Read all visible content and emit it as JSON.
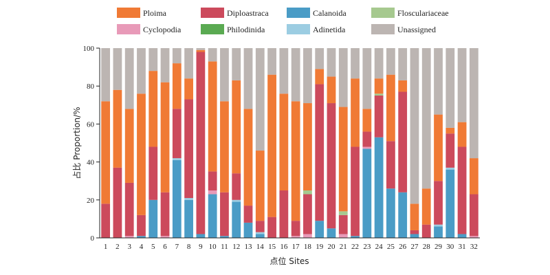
{
  "chart_data": {
    "type": "bar",
    "stacked": true,
    "categories": [
      "1",
      "2",
      "3",
      "4",
      "5",
      "6",
      "7",
      "8",
      "9",
      "10",
      "11",
      "12",
      "13",
      "14",
      "15",
      "16",
      "17",
      "18",
      "19",
      "20",
      "21",
      "22",
      "23",
      "24",
      "25",
      "26",
      "27",
      "28",
      "29",
      "30",
      "31",
      "32"
    ],
    "xlabel": "点位 Sites",
    "ylabel": "占比 Proportion/%",
    "ylim": [
      0,
      100
    ],
    "yticks": [
      0,
      20,
      40,
      60,
      80,
      100
    ],
    "grid": false,
    "legend_position": "top",
    "series": [
      {
        "name": "Calanoida",
        "color": "#4a9cc6",
        "values": [
          0,
          0,
          0,
          1,
          20,
          0,
          41,
          20,
          2,
          23,
          1,
          19,
          8,
          2,
          0,
          0,
          0,
          0,
          9,
          5,
          0,
          1,
          47,
          53,
          26,
          24,
          2,
          0,
          6,
          36,
          2,
          0
        ]
      },
      {
        "name": "Cyclopodia",
        "color": "#e89ab8",
        "values": [
          0,
          0,
          1,
          0,
          0,
          1,
          0,
          0,
          0,
          2,
          0,
          0,
          0,
          0,
          0,
          0,
          1,
          2,
          0,
          0,
          2,
          0,
          1,
          0,
          0,
          0,
          0,
          0,
          0,
          0,
          0,
          1
        ]
      },
      {
        "name": "Adinetida",
        "color": "#9ccde2",
        "values": [
          0,
          0,
          0,
          0,
          0,
          0,
          1,
          1,
          0,
          0,
          0,
          1,
          0,
          1,
          0,
          0,
          0,
          0,
          0,
          0,
          0,
          0,
          0,
          0,
          0,
          0,
          0,
          0,
          1,
          1,
          0,
          0
        ]
      },
      {
        "name": "Diploastraca",
        "color": "#cc4a5c",
        "values": [
          18,
          37,
          28,
          11,
          28,
          23,
          26,
          52,
          96,
          10,
          23,
          14,
          9,
          6,
          11,
          25,
          8,
          21,
          72,
          66,
          10,
          47,
          8,
          22,
          25,
          53,
          2,
          7,
          23,
          18,
          46,
          22
        ]
      },
      {
        "name": "Philodinida",
        "color": "#5aaa52",
        "values": [
          0,
          0,
          0,
          0,
          0,
          0,
          0,
          0,
          0,
          0,
          0,
          0,
          0,
          0,
          0,
          0,
          0,
          0,
          0,
          0,
          0,
          0,
          0,
          0,
          0,
          0,
          0,
          0,
          0,
          0,
          0,
          0
        ]
      },
      {
        "name": "Flosculariaceae",
        "color": "#a6c98f",
        "values": [
          0,
          0,
          0,
          0,
          0,
          0,
          0,
          0,
          0,
          0,
          0,
          0,
          0,
          0,
          0,
          0,
          0,
          2,
          0,
          0,
          2,
          0,
          0,
          1,
          0,
          0,
          0,
          0,
          0,
          0,
          0,
          0
        ]
      },
      {
        "name": "Ploima",
        "color": "#f07a35",
        "values": [
          54,
          41,
          39,
          64,
          40,
          58,
          24,
          11,
          1,
          58,
          48,
          49,
          51,
          37,
          75,
          51,
          63,
          46,
          8,
          14,
          55,
          36,
          12,
          8,
          35,
          6,
          14,
          19,
          35,
          3,
          13,
          19
        ]
      },
      {
        "name": "Unassigned",
        "color": "#bcb5b2",
        "values": [
          28,
          22,
          32,
          24,
          12,
          18,
          8,
          16,
          1,
          7,
          28,
          17,
          32,
          54,
          14,
          24,
          28,
          29,
          11,
          15,
          31,
          16,
          32,
          16,
          14,
          17,
          82,
          74,
          35,
          42,
          39,
          58
        ]
      }
    ],
    "legend": [
      {
        "label": "Ploima",
        "color": "#f07a35"
      },
      {
        "label": "Diploastraca",
        "color": "#cc4a5c"
      },
      {
        "label": "Calanoida",
        "color": "#4a9cc6"
      },
      {
        "label": "Flosculariaceae",
        "color": "#a6c98f"
      },
      {
        "label": "Cyclopodia",
        "color": "#e89ab8"
      },
      {
        "label": "Philodinida",
        "color": "#5aaa52"
      },
      {
        "label": "Adinetida",
        "color": "#9ccde2"
      },
      {
        "label": "Unassigned",
        "color": "#bcb5b2"
      }
    ]
  }
}
